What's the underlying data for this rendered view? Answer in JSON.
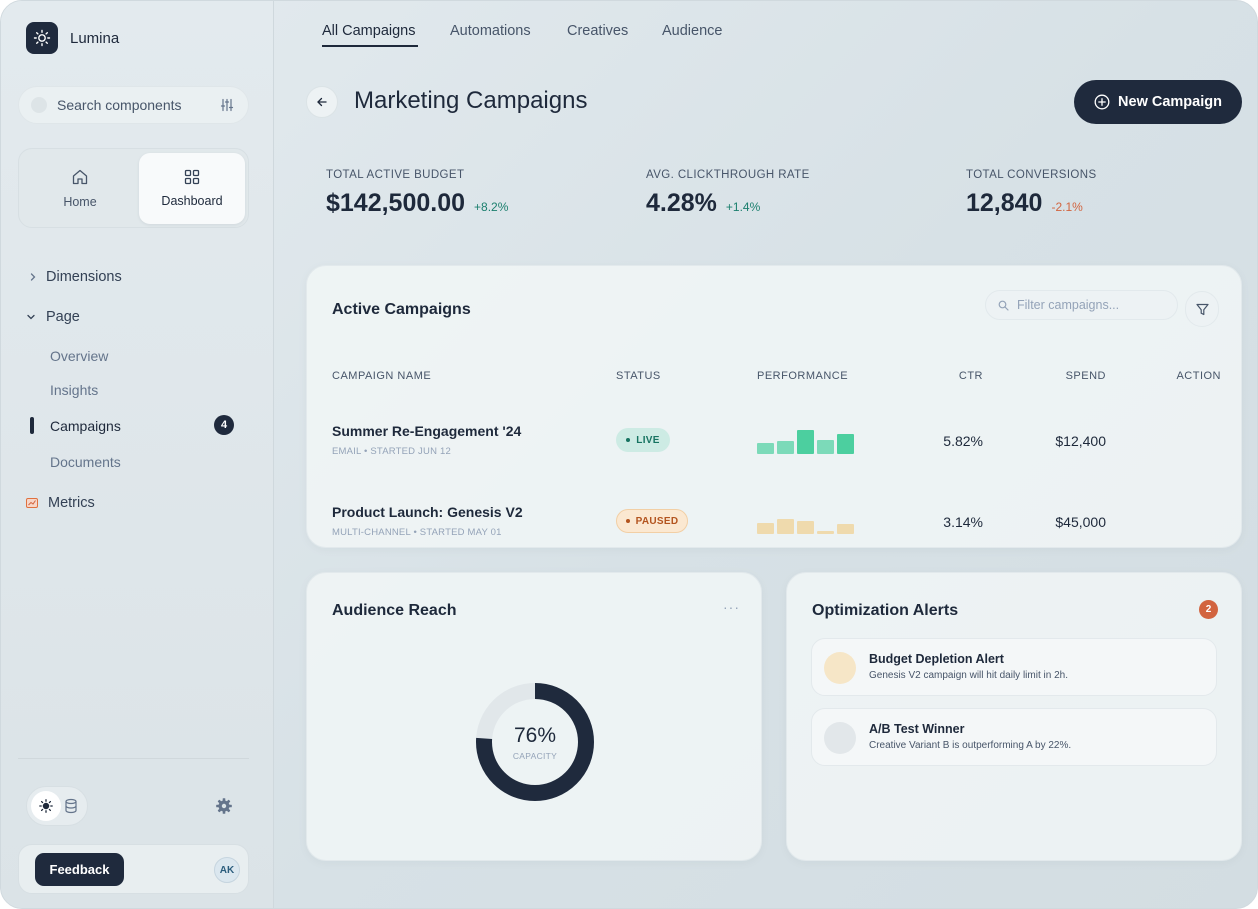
{
  "sidebar": {
    "brand": "Lumina",
    "search_placeholder": "Search components",
    "tiles": [
      {
        "label": "Home",
        "icon": "home-icon"
      },
      {
        "label": "Dashboard",
        "icon": "grid-icon"
      }
    ],
    "nav": {
      "dimensions": "Dimensions",
      "page": "Page",
      "sub_items": [
        "Overview",
        "Insights",
        "Campaigns",
        "Documents"
      ],
      "campaigns_count": "4",
      "metrics": "Metrics"
    },
    "feedback_label": "Feedback",
    "avatar_initials": "AK"
  },
  "tabs": [
    "All Campaigns",
    "Automations",
    "Creatives",
    "Audience"
  ],
  "header": {
    "title": "Marketing Campaigns",
    "new_button": "New Campaign"
  },
  "stats": [
    {
      "label": "TOTAL ACTIVE BUDGET",
      "value": "$142,500.00",
      "delta": "+8.2%",
      "trend": "up"
    },
    {
      "label": "AVG. CLICKTHROUGH RATE",
      "value": "4.28%",
      "delta": "+1.4%",
      "trend": "up"
    },
    {
      "label": "TOTAL CONVERSIONS",
      "value": "12,840",
      "delta": "-2.1%",
      "trend": "down"
    }
  ],
  "campaigns": {
    "title": "Active Campaigns",
    "filter_placeholder": "Filter campaigns...",
    "columns": [
      "CAMPAIGN NAME",
      "STATUS",
      "PERFORMANCE",
      "CTR",
      "SPEND",
      "ACTION"
    ],
    "rows": [
      {
        "name": "Summer Re-Engagement '24",
        "meta": "EMAIL • STARTED JUN 12",
        "status": "LIVE",
        "ctr": "5.82%",
        "spend": "$12,400",
        "performance": [
          0.45,
          0.55,
          1.0,
          0.6,
          0.85
        ]
      },
      {
        "name": "Product Launch: Genesis V2",
        "meta": "MULTI-CHANNEL • STARTED MAY 01",
        "status": "PAUSED",
        "ctr": "3.14%",
        "spend": "$45,000",
        "performance": [
          0.55,
          0.75,
          0.65,
          0.15,
          0.5
        ]
      }
    ]
  },
  "audience": {
    "title": "Audience Reach",
    "more": "···",
    "value": "76%",
    "label": "CAPACITY",
    "fraction": 0.76
  },
  "alerts": {
    "title": "Optimization Alerts",
    "count": "2",
    "items": [
      {
        "title": "Budget Depletion Alert",
        "desc": "Genesis V2 campaign will hit daily limit in 2h."
      },
      {
        "title": "A/B Test Winner",
        "desc": "Creative Variant B is outperforming A by 22%."
      }
    ]
  },
  "colors": {
    "navy": "#1f2a3d",
    "positive": "#1b7f6e",
    "negative": "#d2643f",
    "live_bar": "#4ccf9f",
    "paused_bar": "#efcf8e"
  }
}
